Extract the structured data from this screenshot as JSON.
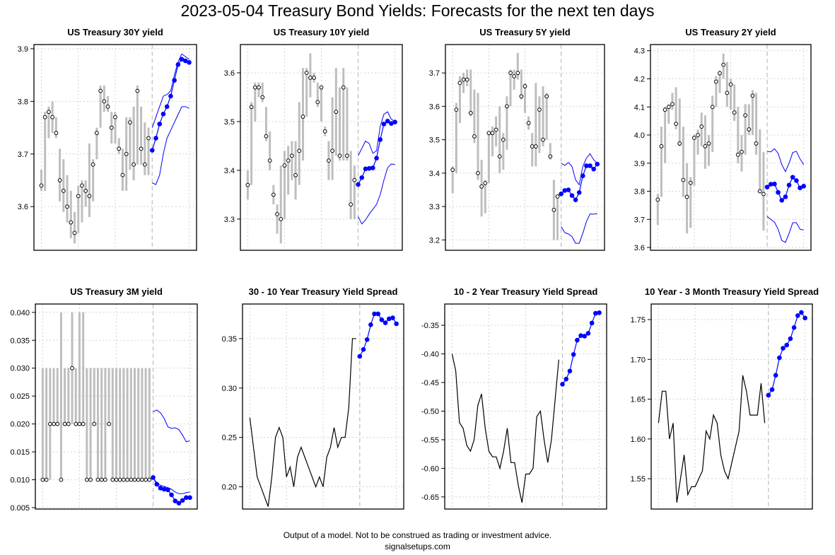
{
  "title": "2023-05-04 Treasury Bond Yields: Forecasts for the next ten days",
  "footer": {
    "disclaimer": "Output of a model. Not to be construed as trading or investment advice.",
    "site": "signalsetups.com"
  },
  "colors": {
    "history_bar": "#bebebe",
    "forecast": "#0000ff",
    "history_line": "#000000",
    "grid": "#d3d3d3"
  },
  "chart_data": [
    {
      "type": "candlestick-forecast",
      "title": "US Treasury 30Y yield",
      "ylim": [
        3.517,
        3.908
      ],
      "yticks": [
        "3.6",
        "3.7",
        "3.8",
        "3.9"
      ],
      "history_close": [
        3.64,
        3.77,
        3.78,
        3.77,
        3.74,
        3.65,
        3.63,
        3.6,
        3.57,
        3.55,
        3.62,
        3.64,
        3.63,
        3.62,
        3.68,
        3.74,
        3.82,
        3.8,
        3.79,
        3.75,
        3.77,
        3.71,
        3.66,
        3.7,
        3.76,
        3.68,
        3.82,
        3.71,
        3.68,
        3.73
      ],
      "history_high": [
        3.67,
        3.78,
        3.79,
        3.8,
        3.77,
        3.71,
        3.69,
        3.66,
        3.63,
        3.59,
        3.64,
        3.65,
        3.65,
        3.72,
        3.69,
        3.75,
        3.83,
        3.83,
        3.81,
        3.78,
        3.78,
        3.73,
        3.71,
        3.77,
        3.77,
        3.79,
        3.83,
        3.79,
        3.76,
        3.75
      ],
      "history_low": [
        3.63,
        3.63,
        3.73,
        3.74,
        3.73,
        3.61,
        3.59,
        3.57,
        3.54,
        3.53,
        3.55,
        3.57,
        3.6,
        3.58,
        3.61,
        3.69,
        3.75,
        3.78,
        3.78,
        3.72,
        3.72,
        3.7,
        3.63,
        3.63,
        3.67,
        3.65,
        3.68,
        3.68,
        3.66,
        3.66
      ],
      "forecast": [
        3.707,
        3.73,
        3.757,
        3.776,
        3.79,
        3.81,
        3.84,
        3.87,
        3.88,
        3.877,
        3.874
      ],
      "forecast_upper": [
        3.75,
        3.77,
        3.79,
        3.81,
        3.813,
        3.82,
        3.85,
        3.875,
        3.89,
        3.885,
        3.88
      ],
      "forecast_lower": [
        3.645,
        3.642,
        3.66,
        3.7,
        3.73,
        3.745,
        3.76,
        3.775,
        3.79,
        3.79,
        3.787
      ]
    },
    {
      "type": "candlestick-forecast",
      "title": "US Treasury 10Y yield",
      "ylim": [
        3.236,
        3.658
      ],
      "yticks": [
        "3.3",
        "3.4",
        "3.5",
        "3.6"
      ],
      "history_close": [
        3.37,
        3.53,
        3.57,
        3.57,
        3.55,
        3.47,
        3.42,
        3.35,
        3.31,
        3.3,
        3.41,
        3.42,
        3.43,
        3.39,
        3.44,
        3.51,
        3.6,
        3.59,
        3.59,
        3.54,
        3.57,
        3.48,
        3.42,
        3.44,
        3.52,
        3.43,
        3.57,
        3.43,
        3.33,
        3.38
      ],
      "history_high": [
        3.4,
        3.54,
        3.58,
        3.58,
        3.58,
        3.53,
        3.48,
        3.37,
        3.33,
        3.41,
        3.44,
        3.45,
        3.46,
        3.46,
        3.54,
        3.61,
        3.61,
        3.64,
        3.6,
        3.58,
        3.57,
        3.49,
        3.46,
        3.55,
        3.61,
        3.57,
        3.61,
        3.57,
        3.44,
        3.41
      ],
      "history_low": [
        3.34,
        3.37,
        3.5,
        3.55,
        3.54,
        3.46,
        3.4,
        3.33,
        3.27,
        3.25,
        3.3,
        3.35,
        3.38,
        3.34,
        3.37,
        3.42,
        3.51,
        3.55,
        3.58,
        3.53,
        3.5,
        3.47,
        3.38,
        3.38,
        3.43,
        3.42,
        3.42,
        3.42,
        3.3,
        3.3
      ],
      "forecast": [
        3.371,
        3.385,
        3.403,
        3.404,
        3.405,
        3.425,
        3.463,
        3.495,
        3.501,
        3.496,
        3.499
      ],
      "forecast_upper": [
        3.43,
        3.445,
        3.46,
        3.455,
        3.435,
        3.44,
        3.49,
        3.515,
        3.52,
        3.505,
        3.5
      ],
      "forecast_lower": [
        3.305,
        3.29,
        3.298,
        3.31,
        3.32,
        3.33,
        3.35,
        3.38,
        3.405,
        3.413,
        3.412
      ]
    },
    {
      "type": "candlestick-forecast",
      "title": "US Treasury 5Y yield",
      "ylim": [
        3.169,
        3.785
      ],
      "yticks": [
        "3.2",
        "3.3",
        "3.4",
        "3.5",
        "3.6",
        "3.7"
      ],
      "history_close": [
        3.41,
        3.59,
        3.67,
        3.68,
        3.68,
        3.58,
        3.51,
        3.4,
        3.36,
        3.37,
        3.52,
        3.52,
        3.53,
        3.45,
        3.5,
        3.6,
        3.7,
        3.69,
        3.7,
        3.63,
        3.66,
        3.55,
        3.48,
        3.48,
        3.59,
        3.5,
        3.63,
        3.45,
        3.29,
        3.33
      ],
      "history_high": [
        3.42,
        3.61,
        3.69,
        3.7,
        3.71,
        3.71,
        3.65,
        3.64,
        3.44,
        3.38,
        3.52,
        3.54,
        3.57,
        3.6,
        3.52,
        3.63,
        3.71,
        3.71,
        3.76,
        3.71,
        3.67,
        3.57,
        3.52,
        3.67,
        3.63,
        3.66,
        3.64,
        3.49,
        3.38,
        3.33
      ],
      "history_low": [
        3.34,
        3.4,
        3.55,
        3.64,
        3.66,
        3.57,
        3.49,
        3.38,
        3.27,
        3.28,
        3.37,
        3.45,
        3.48,
        3.4,
        3.41,
        3.47,
        3.6,
        3.65,
        3.68,
        3.62,
        3.58,
        3.53,
        3.42,
        3.42,
        3.46,
        3.48,
        3.5,
        3.44,
        3.2,
        3.2
      ],
      "forecast": [
        3.338,
        3.348,
        3.35,
        3.333,
        3.32,
        3.342,
        3.392,
        3.422,
        3.422,
        3.412,
        3.427
      ],
      "forecast_upper": [
        3.43,
        3.423,
        3.432,
        3.42,
        3.38,
        3.365,
        3.42,
        3.445,
        3.458,
        3.44,
        3.43
      ],
      "forecast_lower": [
        3.24,
        3.222,
        3.218,
        3.21,
        3.19,
        3.19,
        3.22,
        3.255,
        3.278,
        3.277,
        3.279
      ]
    },
    {
      "type": "candlestick-forecast",
      "title": "US Treasury 2Y yield",
      "ylim": [
        3.59,
        4.322
      ],
      "yticks": [
        "3.6",
        "3.7",
        "3.8",
        "3.9",
        "4.0",
        "4.1",
        "4.2",
        "4.3"
      ],
      "history_close": [
        3.77,
        3.96,
        4.09,
        4.1,
        4.11,
        4.04,
        3.97,
        3.84,
        3.78,
        3.83,
        3.99,
        4.0,
        4.03,
        3.96,
        3.97,
        4.1,
        4.19,
        4.22,
        4.25,
        4.15,
        4.18,
        4.08,
        3.93,
        3.94,
        4.07,
        4.02,
        4.14,
        3.97,
        3.8,
        3.79
      ],
      "history_high": [
        3.79,
        4.03,
        4.1,
        4.11,
        4.15,
        4.17,
        4.13,
        4.03,
        3.9,
        3.85,
        4.0,
        4.02,
        4.08,
        4.07,
        4.0,
        4.14,
        4.21,
        4.23,
        4.29,
        4.26,
        4.2,
        4.18,
        4.1,
        4.0,
        4.11,
        4.11,
        4.16,
        4.15,
        4.02,
        3.94
      ],
      "history_low": [
        3.68,
        3.78,
        3.9,
        4.04,
        4.09,
        4.02,
        3.96,
        3.78,
        3.65,
        3.67,
        3.82,
        3.93,
        3.96,
        3.88,
        3.89,
        3.94,
        4.1,
        4.15,
        4.2,
        4.1,
        4.09,
        4.05,
        3.9,
        3.87,
        3.93,
        4.0,
        4.0,
        3.93,
        3.8,
        3.66
      ],
      "forecast": [
        3.815,
        3.825,
        3.826,
        3.796,
        3.768,
        3.78,
        3.822,
        3.85,
        3.838,
        3.812,
        3.818
      ],
      "forecast_upper": [
        3.942,
        3.94,
        3.951,
        3.935,
        3.895,
        3.87,
        3.9,
        3.938,
        3.942,
        3.915,
        3.895
      ],
      "forecast_lower": [
        3.71,
        3.7,
        3.69,
        3.665,
        3.625,
        3.618,
        3.65,
        3.688,
        3.688,
        3.665,
        3.662
      ]
    },
    {
      "type": "candlestick-forecast",
      "title": "US Treasury 3M yield",
      "ylim": [
        0.00475,
        0.0415
      ],
      "yticks": [
        "0.005",
        "0.010",
        "0.015",
        "0.020",
        "0.025",
        "0.030",
        "0.035",
        "0.040"
      ],
      "history_close": [
        0.01,
        0.01,
        0.02,
        0.02,
        0.02,
        0.01,
        0.02,
        0.02,
        0.03,
        0.02,
        0.02,
        0.02,
        0.01,
        0.01,
        0.02,
        0.01,
        0.01,
        0.01,
        0.02,
        0.01,
        0.01,
        0.01,
        0.01,
        0.01,
        0.01,
        0.01,
        0.01,
        0.01,
        0.01,
        0.01
      ],
      "history_high": [
        0.03,
        0.03,
        0.03,
        0.03,
        0.03,
        0.04,
        0.03,
        0.03,
        0.04,
        0.03,
        0.04,
        0.04,
        0.03,
        0.03,
        0.03,
        0.03,
        0.03,
        0.03,
        0.03,
        0.03,
        0.03,
        0.03,
        0.03,
        0.03,
        0.03,
        0.03,
        0.03,
        0.03,
        0.03,
        0.03
      ],
      "history_low": [
        0.01,
        0.01,
        0.01,
        0.02,
        0.02,
        0.01,
        0.02,
        0.02,
        0.02,
        0.02,
        0.02,
        0.02,
        0.01,
        0.01,
        0.02,
        0.01,
        0.01,
        0.01,
        0.02,
        0.01,
        0.01,
        0.01,
        0.01,
        0.01,
        0.01,
        0.01,
        0.01,
        0.01,
        0.01,
        0.01
      ],
      "forecast": [
        0.0104,
        0.0092,
        0.0085,
        0.0083,
        0.0082,
        0.0073,
        0.0062,
        0.0058,
        0.0063,
        0.0068,
        0.0068
      ],
      "forecast_upper": [
        0.0222,
        0.0225,
        0.022,
        0.021,
        0.0195,
        0.0192,
        0.0193,
        0.019,
        0.018,
        0.0168,
        0.017
      ],
      "forecast_lower": [
        0.0103,
        0.0095,
        0.009,
        0.0088,
        0.0086,
        0.0083,
        0.0078,
        0.0075,
        0.0075,
        0.0077,
        0.0078
      ]
    },
    {
      "type": "line-forecast",
      "title": "30 - 10 Year Treasury Yield Spread",
      "ylim": [
        0.1775,
        0.385
      ],
      "yticks": [
        "0.20",
        "0.25",
        "0.30",
        "0.35"
      ],
      "history": [
        0.27,
        0.24,
        0.21,
        0.2,
        0.19,
        0.18,
        0.21,
        0.25,
        0.26,
        0.25,
        0.21,
        0.22,
        0.2,
        0.23,
        0.24,
        0.23,
        0.22,
        0.21,
        0.2,
        0.21,
        0.2,
        0.23,
        0.24,
        0.26,
        0.24,
        0.25,
        0.25,
        0.28,
        0.35,
        0.35
      ],
      "forecast": [
        0.332,
        0.339,
        0.349,
        0.364,
        0.375,
        0.375,
        0.369,
        0.366,
        0.37,
        0.371,
        0.365
      ]
    },
    {
      "type": "line-forecast",
      "title": "10 - 2 Year Treasury Yield Spread",
      "ylim": [
        -0.6712,
        -0.3128
      ],
      "yticks": [
        "-0.65",
        "-0.60",
        "-0.55",
        "-0.50",
        "-0.45",
        "-0.40",
        "-0.35"
      ],
      "history": [
        -0.4,
        -0.43,
        -0.52,
        -0.53,
        -0.56,
        -0.57,
        -0.55,
        -0.49,
        -0.47,
        -0.53,
        -0.57,
        -0.58,
        -0.58,
        -0.6,
        -0.57,
        -0.53,
        -0.59,
        -0.59,
        -0.63,
        -0.66,
        -0.61,
        -0.61,
        -0.6,
        -0.51,
        -0.5,
        -0.55,
        -0.59,
        -0.55,
        -0.48,
        -0.41
      ],
      "forecast": [
        -0.453,
        -0.444,
        -0.43,
        -0.401,
        -0.376,
        -0.368,
        -0.369,
        -0.364,
        -0.346,
        -0.329,
        -0.328
      ]
    },
    {
      "type": "line-forecast",
      "title": "10 Year - 3 Month Treasury Yield Spread",
      "ylim": [
        1.5119,
        1.7696
      ],
      "yticks": [
        "1.55",
        "1.60",
        "1.65",
        "1.70",
        "1.75"
      ],
      "history": [
        1.62,
        1.66,
        1.66,
        1.6,
        1.62,
        1.52,
        1.55,
        1.58,
        1.53,
        1.54,
        1.54,
        1.55,
        1.56,
        1.61,
        1.6,
        1.63,
        1.62,
        1.58,
        1.56,
        1.55,
        1.57,
        1.59,
        1.61,
        1.68,
        1.66,
        1.63,
        1.63,
        1.63,
        1.67,
        1.62
      ],
      "forecast": [
        1.655,
        1.662,
        1.68,
        1.702,
        1.714,
        1.718,
        1.726,
        1.74,
        1.755,
        1.759,
        1.752
      ]
    }
  ]
}
